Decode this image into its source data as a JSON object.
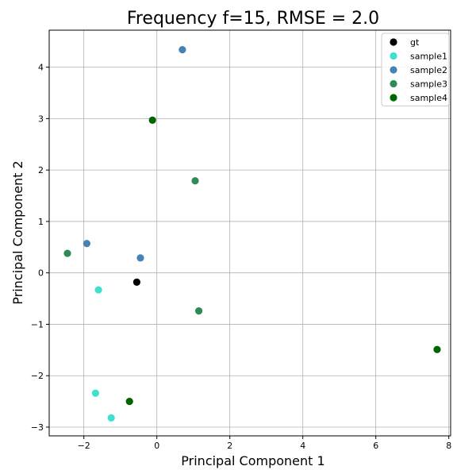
{
  "chart_data": {
    "type": "scatter",
    "title": "Frequency f=15, RMSE = 2.0",
    "xlabel": "Principal Component 1",
    "ylabel": "Principal Component 2",
    "xlim": [
      -2.95,
      8.05
    ],
    "ylim": [
      -3.17,
      4.72
    ],
    "xticks": [
      -2,
      0,
      2,
      4,
      6,
      8
    ],
    "yticks": [
      -3,
      -2,
      -1,
      0,
      1,
      2,
      3,
      4
    ],
    "xtick_labels": [
      "−2",
      "0",
      "2",
      "4",
      "6",
      "8"
    ],
    "ytick_labels": [
      "−3",
      "−2",
      "−1",
      "0",
      "1",
      "2",
      "3",
      "4"
    ],
    "grid": true,
    "legend_position": "top-right",
    "series": [
      {
        "name": "gt",
        "color": "#000000",
        "points": [
          [
            -0.55,
            -0.18
          ]
        ]
      },
      {
        "name": "sample1",
        "color": "#40e0d0",
        "points": [
          [
            -1.6,
            -0.33
          ],
          [
            -1.68,
            -2.34
          ],
          [
            -1.25,
            -2.82
          ]
        ]
      },
      {
        "name": "sample2",
        "color": "#4682b4",
        "points": [
          [
            0.7,
            4.34
          ],
          [
            -1.92,
            0.57
          ],
          [
            -0.45,
            0.29
          ]
        ]
      },
      {
        "name": "sample3",
        "color": "#2e8b57",
        "points": [
          [
            1.05,
            1.79
          ],
          [
            -2.45,
            0.38
          ],
          [
            1.15,
            -0.74
          ]
        ]
      },
      {
        "name": "sample4",
        "color": "#006400",
        "points": [
          [
            -0.12,
            2.97
          ],
          [
            -0.75,
            -2.5
          ],
          [
            7.68,
            -1.49
          ]
        ]
      }
    ]
  }
}
